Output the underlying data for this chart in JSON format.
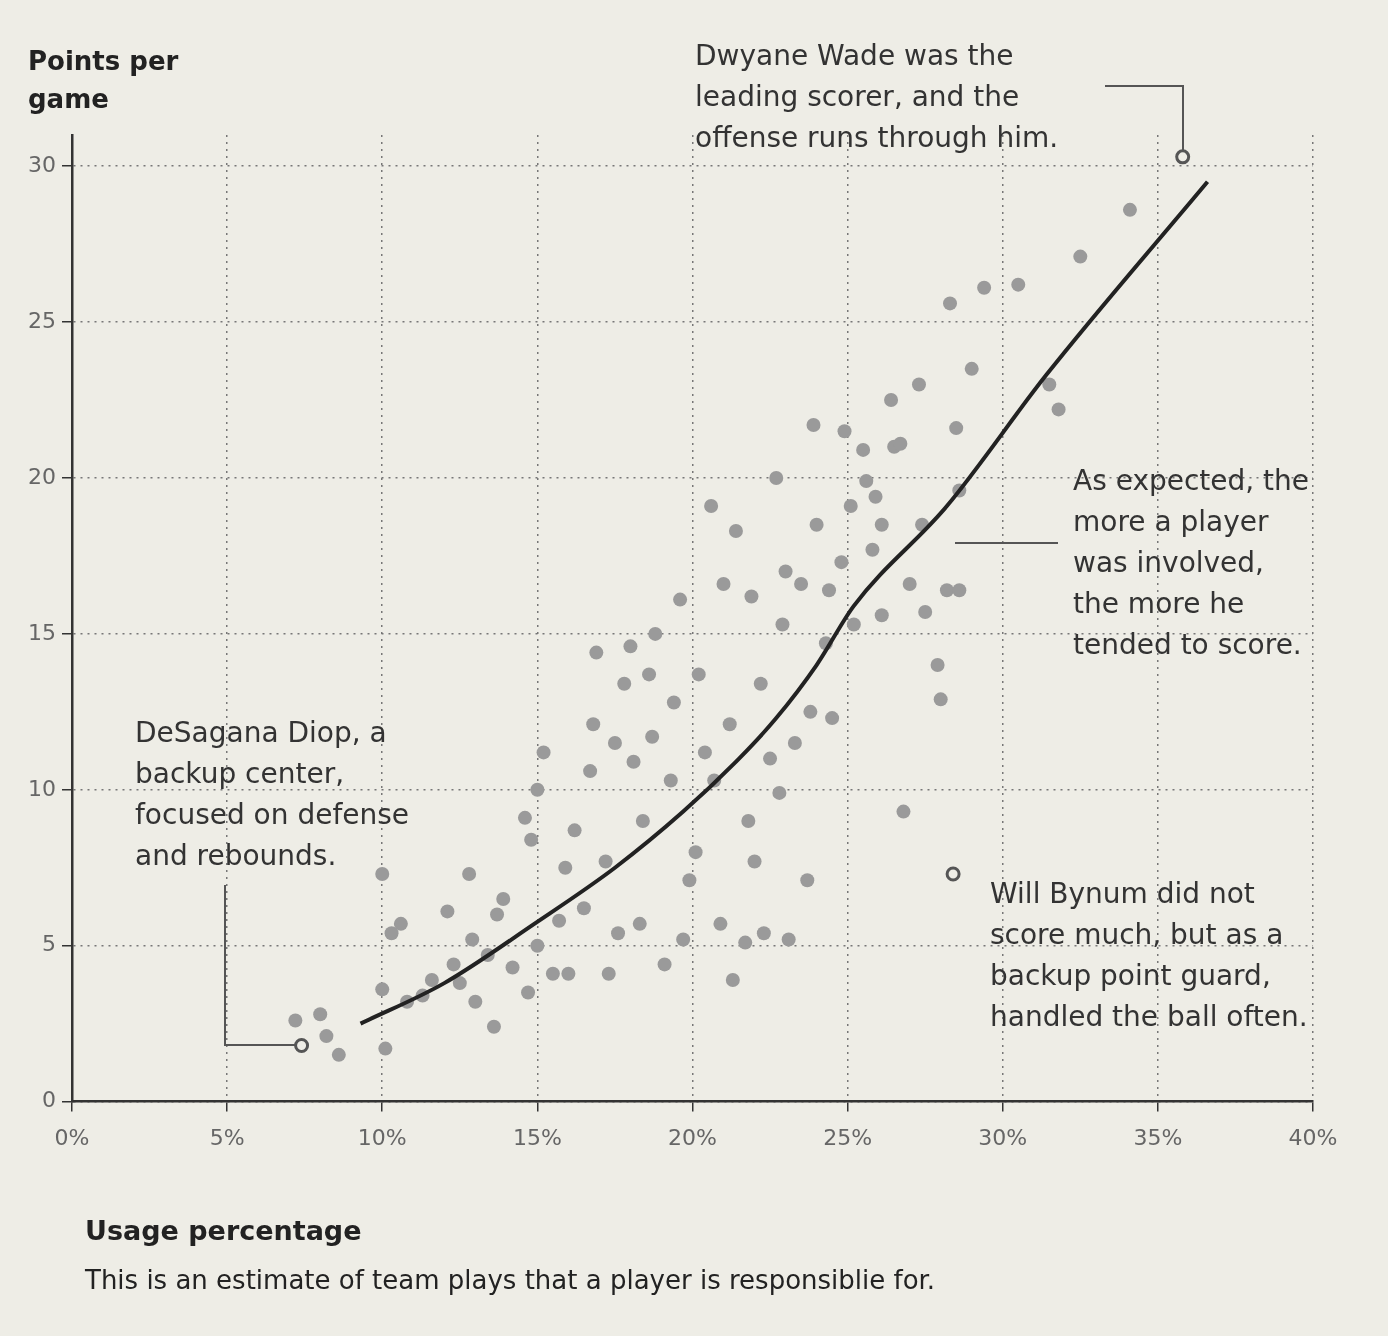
{
  "chart_data": {
    "type": "scatter",
    "xlabel": "Usage percentage",
    "ylabel": "Points per game",
    "annotations": [
      "Dwyane Wade was the leading scorer, and the offense runs through him.",
      "DeSagana Diop, a backup center, focused on defense and rebounds.",
      "Will Bynum did not score much, but as a backup point guard, handled the ball often.",
      "As expected, the more a player was involved, the more he tended to score.",
      "This is an estimate of team plays that a player is responsiblie for."
    ],
    "xlim": [
      0,
      40
    ],
    "ylim": [
      0,
      31
    ],
    "xticks": [
      {
        "value": 0,
        "label": "0%"
      },
      {
        "value": 5,
        "label": "5%"
      },
      {
        "value": 10,
        "label": "10%"
      },
      {
        "value": 15,
        "label": "15%"
      },
      {
        "value": 20,
        "label": "20%"
      },
      {
        "value": 25,
        "label": "25%"
      },
      {
        "value": 30,
        "label": "30%"
      },
      {
        "value": 35,
        "label": "35%"
      },
      {
        "value": 40,
        "label": "40%"
      }
    ],
    "yticks": [
      0,
      5,
      10,
      15,
      20,
      25,
      30
    ],
    "grid": true,
    "marker": "circle",
    "series": [
      {
        "color": "#9a9a9a",
        "x": [
          7.2,
          8.0,
          8.2,
          8.6,
          10.0,
          10.1,
          10.0,
          10.3,
          10.6,
          10.8,
          11.3,
          11.6,
          12.1,
          12.3,
          12.5,
          12.8,
          12.9,
          13.0,
          13.4,
          13.6,
          13.7,
          13.9,
          14.2,
          14.6,
          14.7,
          14.8,
          15.0,
          15.0,
          15.2,
          15.5,
          15.7,
          15.9,
          16.0,
          16.2,
          16.5,
          16.7,
          16.8,
          16.9,
          17.2,
          17.3,
          17.5,
          17.6,
          17.8,
          18.0,
          18.1,
          18.3,
          18.4,
          18.6,
          18.7,
          18.8,
          19.1,
          19.3,
          19.4,
          19.6,
          19.7,
          19.9,
          20.1,
          20.2,
          20.4,
          20.6,
          20.7,
          20.9,
          21.0,
          21.2,
          21.3,
          21.4,
          21.7,
          21.8,
          21.9,
          22.0,
          22.2,
          22.3,
          22.5,
          22.7,
          22.8,
          22.9,
          23.0,
          23.1,
          23.3,
          23.5,
          23.7,
          23.8,
          23.9,
          24.0,
          24.3,
          24.4,
          24.5,
          24.8,
          24.9,
          25.1,
          25.2,
          25.5,
          25.6,
          25.8,
          25.9,
          26.1,
          26.1,
          26.4,
          26.5,
          26.7,
          26.8,
          27.0,
          27.3,
          27.4,
          27.5,
          27.9,
          28.0,
          28.2,
          28.3,
          28.5,
          28.6,
          28.6,
          29.0,
          29.4,
          30.5,
          31.5,
          31.8,
          32.5,
          34.1
        ],
        "values": [
          2.6,
          2.8,
          2.1,
          1.5,
          7.3,
          1.7,
          3.6,
          5.4,
          5.7,
          3.2,
          3.4,
          3.9,
          6.1,
          4.4,
          3.8,
          7.3,
          5.2,
          3.2,
          4.7,
          2.4,
          6.0,
          6.5,
          4.3,
          9.1,
          3.5,
          8.4,
          10.0,
          5.0,
          11.2,
          4.1,
          5.8,
          7.5,
          4.1,
          8.7,
          6.2,
          10.6,
          12.1,
          14.4,
          7.7,
          4.1,
          11.5,
          5.4,
          13.4,
          14.6,
          10.9,
          5.7,
          9.0,
          13.7,
          11.7,
          15.0,
          4.4,
          10.3,
          12.8,
          16.1,
          5.2,
          7.1,
          8.0,
          13.7,
          11.2,
          19.1,
          10.3,
          5.7,
          16.6,
          12.1,
          3.9,
          18.3,
          5.1,
          9.0,
          16.2,
          7.7,
          13.4,
          5.4,
          11.0,
          20.0,
          9.9,
          15.3,
          17.0,
          5.2,
          11.5,
          16.6,
          7.1,
          12.5,
          21.7,
          18.5,
          14.7,
          16.4,
          12.3,
          17.3,
          21.5,
          19.1,
          15.3,
          20.9,
          19.9,
          17.7,
          19.4,
          15.6,
          18.5,
          22.5,
          21.0,
          21.1,
          9.3,
          16.6,
          23.0,
          18.5,
          15.7,
          14.0,
          12.9,
          16.4,
          25.6,
          21.6,
          16.4,
          19.6,
          23.5,
          26.1,
          26.2,
          23.0,
          22.2,
          27.1,
          28.6
        ]
      },
      {
        "color": "#555555",
        "x": [
          7.4,
          35.8,
          28.4
        ],
        "values": [
          1.8,
          30.3,
          7.3
        ]
      },
      {
        "type": "line",
        "color": "#222222",
        "marker": "none",
        "x": [
          9.3,
          12,
          14.9,
          17.5,
          19.7,
          21.5,
          22.7,
          24,
          25.2,
          28.2,
          31.4,
          36.6
        ],
        "values": [
          2.5,
          3.8,
          5.7,
          7.5,
          9.3,
          11,
          12.3,
          14,
          15.9,
          19.1,
          23.3,
          29.5
        ]
      }
    ]
  }
}
